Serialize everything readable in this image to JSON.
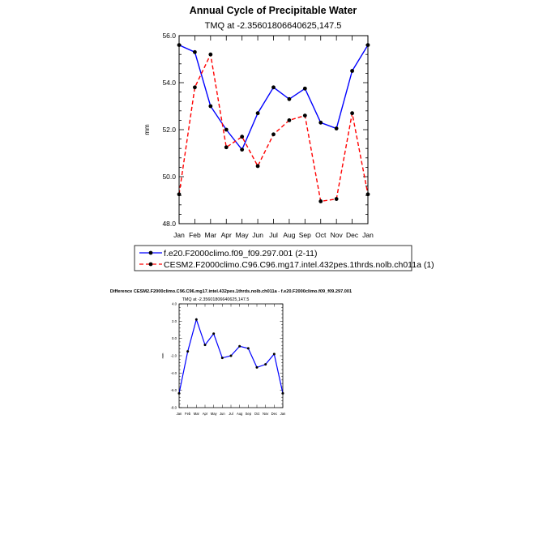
{
  "chart_data": [
    {
      "type": "line",
      "title": "Annual Cycle of Precipitable Water",
      "subtitle": "TMQ at -2.35601806640625,147.5",
      "xlabel": "",
      "ylabel": "mm",
      "categories": [
        "Jan",
        "Feb",
        "Mar",
        "Apr",
        "May",
        "Jun",
        "Jul",
        "Aug",
        "Sep",
        "Oct",
        "Nov",
        "Dec",
        "Jan"
      ],
      "ylim": [
        48.0,
        56.0
      ],
      "yticks": [
        "48.0",
        "50.0",
        "52.0",
        "54.0",
        "56.0"
      ],
      "grid": false,
      "legend_position": "bottom",
      "series": [
        {
          "name": "f.e20.F2000climo.f09_f09.297.001 (2-11)",
          "color": "#0000ff",
          "dash": "solid",
          "values": [
            55.6,
            55.3,
            53.0,
            52.0,
            51.15,
            52.7,
            53.8,
            53.3,
            53.75,
            52.3,
            52.05,
            54.5,
            55.6
          ]
        },
        {
          "name": "CESM2.F2000climo.C96.C96.mg17.intel.432pes.1thrds.nolb.ch011a (1)",
          "color": "#ff0000",
          "dash": "dashed",
          "values": [
            49.25,
            53.8,
            55.2,
            51.25,
            51.7,
            50.45,
            51.8,
            52.4,
            52.6,
            48.95,
            49.05,
            52.7,
            49.25
          ]
        }
      ]
    },
    {
      "type": "line",
      "title": "Difference CESM2.F2000climo.C96.C96.mg17.intel.432pes.1thrds.nolb.ch011a - f.e20.F2000climo.f09_f09.297.001",
      "subtitle": "TMQ at -2.35601806640625,147.5",
      "xlabel": "",
      "ylabel": "mm",
      "categories": [
        "Jan",
        "Feb",
        "Mar",
        "Apr",
        "May",
        "Jun",
        "Jul",
        "Aug",
        "Sep",
        "Oct",
        "Nov",
        "Dec",
        "Jan"
      ],
      "ylim": [
        -8.0,
        4.0
      ],
      "yticks": [
        "-8.0",
        "-6.0",
        "-4.0",
        "-2.0",
        "0.0",
        "2.0",
        "4.0"
      ],
      "grid": false,
      "series": [
        {
          "name": "Difference",
          "color": "#0000ff",
          "dash": "solid",
          "values": [
            -6.35,
            -1.5,
            2.2,
            -0.75,
            0.55,
            -2.25,
            -2.0,
            -0.9,
            -1.15,
            -3.35,
            -3.0,
            -1.8,
            -6.35
          ]
        }
      ]
    }
  ]
}
